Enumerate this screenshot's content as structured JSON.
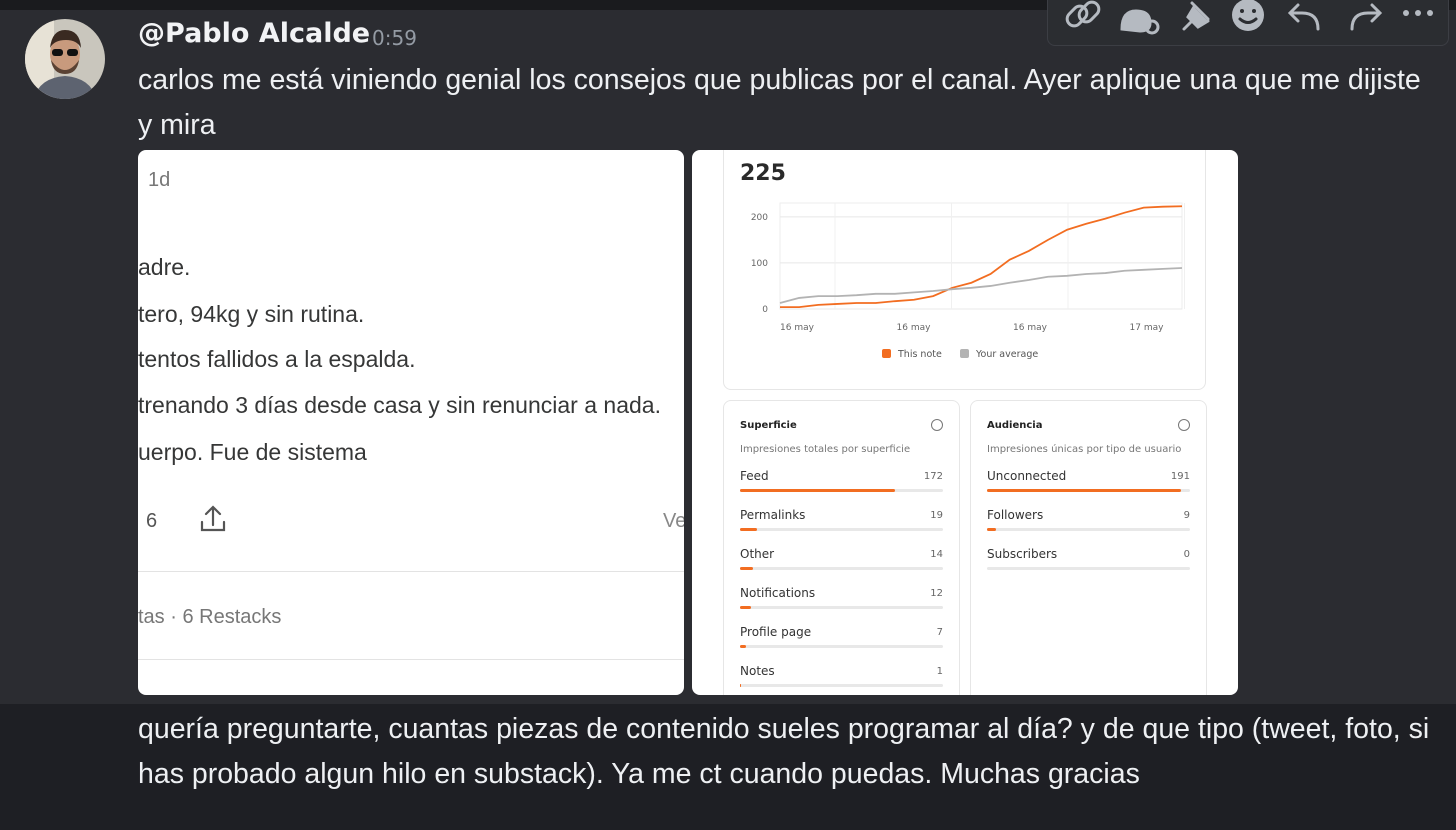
{
  "message": {
    "author": "@Pablo Alcalde",
    "time": "0:59",
    "text": "carlos me está viniendo genial los consejos que publicas por el canal. Ayer aplique una que me dijiste y mira",
    "followup": "quería preguntarte, cuantas piezas de contenido sueles programar al día? y de que tipo (tweet, foto, si has probado algun hilo en substack). Ya me ct cuando puedas. Muchas gracias"
  },
  "post_image": {
    "age": "1d",
    "lines": [
      "adre.",
      "tero, 94kg y sin rutina.",
      "tentos fallidos a la espalda.",
      "trenando 3 días desde casa y sin renunciar a nada.",
      "uerpo. Fue de sistema"
    ],
    "reaction_count": "6",
    "truncated_button": "Ve",
    "footer": "tas · 6 Restacks"
  },
  "stats_image": {
    "total": 225,
    "chart_data": {
      "type": "line",
      "x_labels": [
        "16 may",
        "16 may",
        "16 may",
        "17 may"
      ],
      "ylim": [
        0,
        230
      ],
      "yticks": [
        0,
        100,
        200
      ],
      "grid": true,
      "series": [
        {
          "name": "This note",
          "color": "#f26d21",
          "values": [
            4,
            4,
            9,
            11,
            13,
            13,
            17,
            20,
            28,
            46,
            57,
            76,
            107,
            126,
            150,
            172,
            185,
            196,
            209,
            220,
            222,
            223
          ]
        },
        {
          "name": "Your average",
          "color": "#b3b3b3",
          "values": [
            13,
            24,
            28,
            28,
            30,
            33,
            33,
            36,
            39,
            43,
            46,
            50,
            57,
            63,
            70,
            72,
            76,
            78,
            83,
            85,
            87,
            89
          ]
        }
      ]
    },
    "surface": {
      "title": "Superficie",
      "subtitle": "Impresiones totales por superficie",
      "rows": [
        {
          "label": "Feed",
          "value": 172
        },
        {
          "label": "Permalinks",
          "value": 19
        },
        {
          "label": "Other",
          "value": 14
        },
        {
          "label": "Notifications",
          "value": 12
        },
        {
          "label": "Profile page",
          "value": 7
        },
        {
          "label": "Notes",
          "value": 1
        }
      ]
    },
    "audience": {
      "title": "Audiencia",
      "subtitle": "Impresiones únicas por tipo de usuario",
      "rows": [
        {
          "label": "Unconnected",
          "value": 191
        },
        {
          "label": "Followers",
          "value": 9
        },
        {
          "label": "Subscribers",
          "value": 0
        }
      ]
    }
  }
}
